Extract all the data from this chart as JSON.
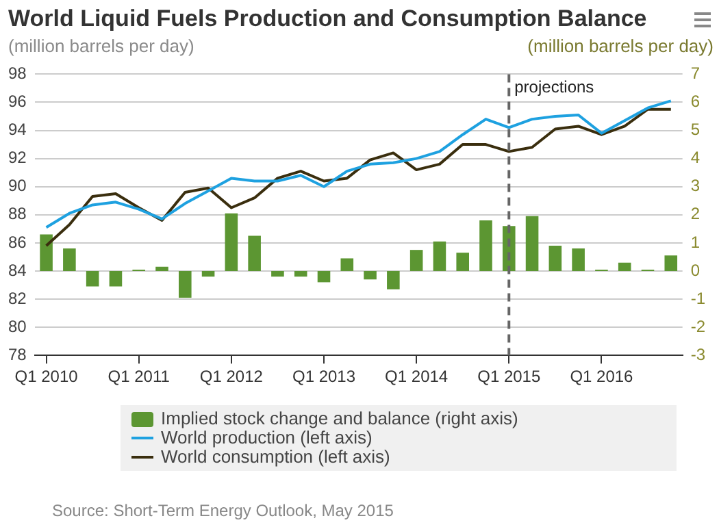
{
  "chart_data": {
    "type": "bar",
    "title": "World Liquid Fuels Production and Consumption Balance",
    "ylabel": "(million barrels per day)",
    "y2label": "(million barrels per day)",
    "categories": [
      "Q1 2010",
      null,
      null,
      null,
      "Q1 2011",
      null,
      null,
      null,
      "Q1 2012",
      null,
      null,
      null,
      "Q1 2013",
      null,
      null,
      null,
      "Q1 2014",
      null,
      null,
      null,
      "Q1 2015",
      null,
      null,
      null,
      "Q1 2016",
      null,
      null,
      null
    ],
    "series": [
      {
        "name": "Implied stock change and balance (right axis)",
        "axis": "y2",
        "color": "#5c9632",
        "values": [
          1.3,
          0.8,
          -0.55,
          -0.55,
          0.05,
          0.15,
          -0.95,
          -0.2,
          2.05,
          1.25,
          -0.2,
          -0.2,
          -0.4,
          0.45,
          -0.3,
          -0.65,
          0.75,
          1.05,
          0.65,
          1.8,
          1.6,
          1.95,
          0.9,
          0.8,
          0.05,
          0.3,
          0.05,
          0.55
        ]
      },
      {
        "name": "World production (left axis)",
        "type": "line",
        "color": "#1ea1e0",
        "values": [
          87.1,
          88.1,
          88.7,
          88.9,
          88.4,
          87.7,
          88.8,
          89.7,
          90.6,
          90.4,
          90.4,
          90.8,
          90.0,
          91.1,
          91.6,
          91.7,
          92.0,
          92.5,
          93.7,
          94.8,
          94.2,
          94.8,
          95.0,
          95.1,
          93.8,
          94.7,
          95.6,
          96.1
        ]
      },
      {
        "name": "World consumption (left axis)",
        "type": "line",
        "color": "#3a2e0e",
        "values": [
          85.8,
          87.3,
          89.3,
          89.5,
          88.5,
          87.6,
          89.6,
          89.9,
          88.5,
          89.2,
          90.6,
          91.1,
          90.4,
          90.6,
          91.9,
          92.4,
          91.2,
          91.6,
          93.0,
          93.0,
          92.5,
          92.8,
          94.1,
          94.3,
          93.7,
          94.3,
          95.5,
          95.5
        ]
      }
    ],
    "ylim": [
      78,
      98
    ],
    "yticks": [
      78,
      80,
      82,
      84,
      86,
      88,
      90,
      92,
      94,
      96,
      98
    ],
    "y2lim": [
      -3,
      7
    ],
    "y2ticks": [
      -3,
      -2,
      -1,
      0,
      1,
      2,
      3,
      4,
      5,
      6,
      7
    ],
    "ref_lines": [
      {
        "axis": "x",
        "value": "Q1 2015",
        "label": "projections",
        "color": "#666666",
        "line_style": "dashed"
      }
    ],
    "grid": "y",
    "legend": "bottom",
    "marker": "none",
    "line_style": "solid",
    "annotations": [
      "Source: Short-Term Energy Outlook, May 2015"
    ]
  }
}
